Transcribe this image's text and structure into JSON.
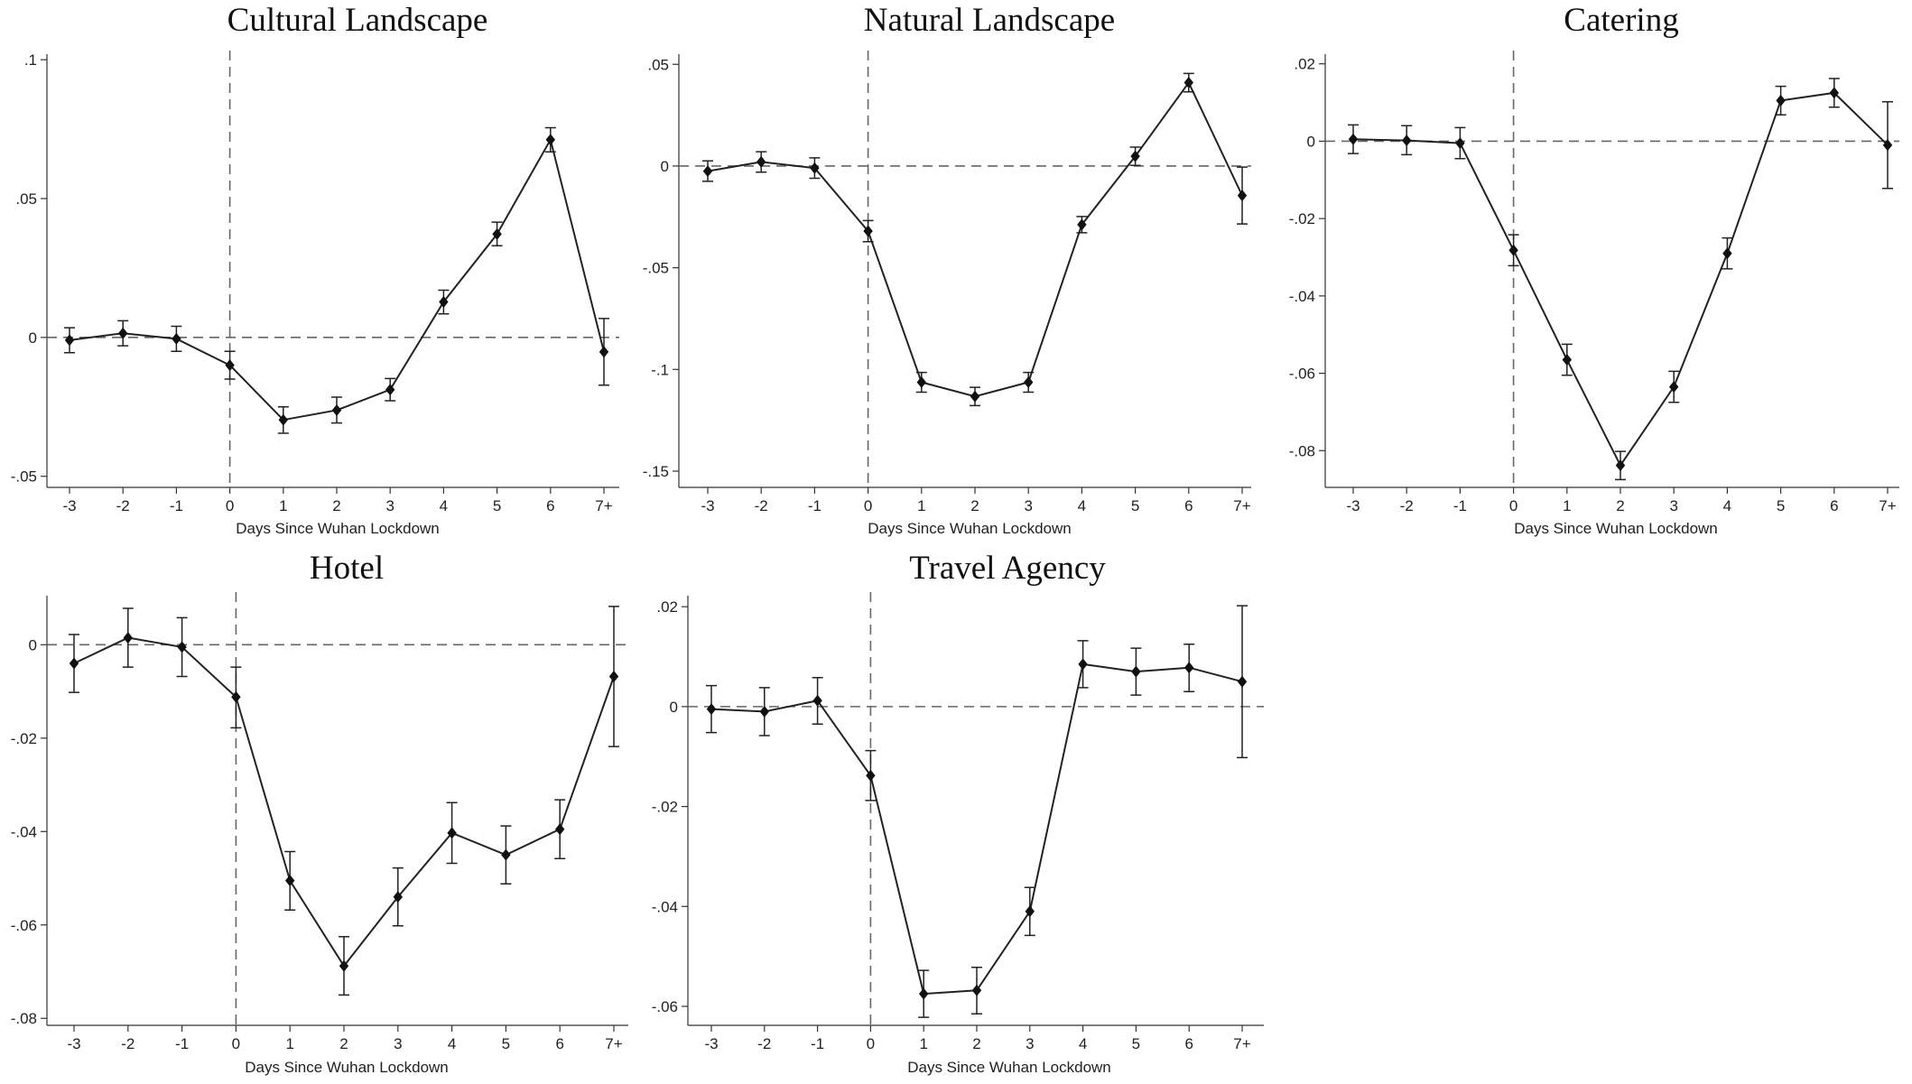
{
  "chart_data": [
    {
      "type": "line",
      "title": "Cultural Landscape",
      "xlabel": "Days Since Wuhan Lockdown",
      "ylabel": "",
      "categories": [
        "-3",
        "-2",
        "-1",
        "0",
        "1",
        "2",
        "3",
        "4",
        "5",
        "6",
        "7+"
      ],
      "yticks": [
        ".1",
        ".05",
        "0",
        "-.05"
      ],
      "ytick_values": [
        0.1,
        0.05,
        0,
        -0.05
      ],
      "ylim": [
        -0.054,
        0.102
      ],
      "reference_lines": {
        "x_category": "0",
        "y_value": 0
      },
      "series": [
        {
          "values": [
            -0.001,
            0.0015,
            -0.0005,
            -0.01,
            -0.0297,
            -0.0262,
            -0.0188,
            0.0128,
            0.0372,
            0.0712,
            -0.0052
          ],
          "ci_low": [
            -0.0055,
            -0.003,
            -0.005,
            -0.015,
            -0.0345,
            -0.0308,
            -0.0228,
            0.0085,
            0.033,
            0.0668,
            -0.0172
          ],
          "ci_high": [
            0.0035,
            0.006,
            0.004,
            -0.005,
            -0.025,
            -0.0215,
            -0.0148,
            0.017,
            0.0415,
            0.0755,
            0.0068
          ]
        }
      ],
      "legend": "none"
    },
    {
      "type": "line",
      "title": "Natural Landscape",
      "xlabel": "Days Since Wuhan Lockdown",
      "ylabel": "",
      "categories": [
        "-3",
        "-2",
        "-1",
        "0",
        "1",
        "2",
        "3",
        "4",
        "5",
        "6",
        "7+"
      ],
      "yticks": [
        ".05",
        "0",
        "-.05",
        "-.1",
        "-.15"
      ],
      "ytick_values": [
        0.05,
        0,
        -0.05,
        -0.1,
        -0.15
      ],
      "ylim": [
        -0.158,
        0.055
      ],
      "reference_lines": {
        "x_category": "0",
        "y_value": 0
      },
      "series": [
        {
          "values": [
            -0.0025,
            0.002,
            -0.001,
            -0.032,
            -0.1063,
            -0.1133,
            -0.1063,
            -0.0288,
            0.0048,
            0.041,
            -0.0145
          ],
          "ci_low": [
            -0.0075,
            -0.003,
            -0.006,
            -0.0372,
            -0.1112,
            -0.1178,
            -0.1112,
            -0.0328,
            0.0003,
            0.0365,
            -0.0285
          ],
          "ci_high": [
            0.0025,
            0.007,
            0.004,
            -0.0268,
            -0.1015,
            -0.1088,
            -0.1015,
            -0.0248,
            0.0093,
            0.0455,
            -0.0005
          ]
        }
      ],
      "legend": "none"
    },
    {
      "type": "line",
      "title": "Catering",
      "xlabel": "Days Since Wuhan Lockdown",
      "ylabel": "",
      "categories": [
        "-3",
        "-2",
        "-1",
        "0",
        "1",
        "2",
        "3",
        "4",
        "5",
        "6",
        "7+"
      ],
      "yticks": [
        ".02",
        "0",
        "-.02",
        "-.04",
        "-.06",
        "-.08"
      ],
      "ytick_values": [
        0.02,
        0,
        -0.02,
        -0.04,
        -0.06,
        -0.08
      ],
      "ylim": [
        -0.0895,
        0.0225
      ],
      "reference_lines": {
        "x_category": "0",
        "y_value": 0
      },
      "series": [
        {
          "values": [
            0.0005,
            0.0002,
            -0.0005,
            -0.0282,
            -0.0565,
            -0.0838,
            -0.0635,
            -0.029,
            0.0105,
            0.0125,
            -0.001
          ],
          "ci_low": [
            -0.0032,
            -0.0035,
            -0.0045,
            -0.0322,
            -0.0605,
            -0.0875,
            -0.0675,
            -0.033,
            0.0068,
            0.0088,
            -0.0122
          ],
          "ci_high": [
            0.0042,
            0.004,
            0.0035,
            -0.0242,
            -0.0525,
            -0.0802,
            -0.0595,
            -0.025,
            0.0142,
            0.0162,
            0.0102
          ]
        }
      ],
      "legend": "none"
    },
    {
      "type": "line",
      "title": "Hotel",
      "xlabel": "Days Since Wuhan Lockdown",
      "ylabel": "",
      "categories": [
        "-3",
        "-2",
        "-1",
        "0",
        "1",
        "2",
        "3",
        "4",
        "5",
        "6",
        "7+"
      ],
      "yticks": [
        "0",
        "-.02",
        "-.04",
        "-.06",
        "-.08"
      ],
      "ytick_values": [
        0,
        -0.02,
        -0.04,
        -0.06,
        -0.08
      ],
      "ylim": [
        -0.0815,
        0.0105
      ],
      "reference_lines": {
        "x_category": "0",
        "y_value": 0
      },
      "series": [
        {
          "values": [
            -0.004,
            0.0015,
            -0.0005,
            -0.0112,
            -0.0505,
            -0.0688,
            -0.054,
            -0.0403,
            -0.045,
            -0.0395,
            -0.0068
          ],
          "ci_low": [
            -0.0102,
            -0.0048,
            -0.0068,
            -0.0178,
            -0.0568,
            -0.075,
            -0.0602,
            -0.0468,
            -0.0512,
            -0.0458,
            -0.0218
          ],
          "ci_high": [
            0.0022,
            0.0078,
            0.0058,
            -0.0048,
            -0.0443,
            -0.0625,
            -0.0478,
            -0.0338,
            -0.0388,
            -0.0332,
            0.0082
          ]
        }
      ],
      "legend": "none"
    },
    {
      "type": "line",
      "title": "Travel Agency",
      "xlabel": "Days Since Wuhan Lockdown",
      "ylabel": "",
      "categories": [
        "-3",
        "-2",
        "-1",
        "0",
        "1",
        "2",
        "3",
        "4",
        "5",
        "6",
        "7+"
      ],
      "yticks": [
        ".02",
        "0",
        "-.02",
        "-.04",
        "-.06"
      ],
      "ytick_values": [
        0.02,
        0,
        -0.02,
        -0.04,
        -0.06
      ],
      "ylim": [
        -0.0638,
        0.0222
      ],
      "reference_lines": {
        "x_category": "0",
        "y_value": 0
      },
      "series": [
        {
          "values": [
            -0.0005,
            -0.001,
            0.0012,
            -0.0138,
            -0.0575,
            -0.0568,
            -0.041,
            0.0085,
            0.007,
            0.0078,
            0.005
          ],
          "ci_low": [
            -0.0052,
            -0.0058,
            -0.0035,
            -0.0188,
            -0.0622,
            -0.0615,
            -0.0458,
            0.0038,
            0.0023,
            0.003,
            -0.0102
          ],
          "ci_high": [
            0.0042,
            0.0038,
            0.0058,
            -0.0088,
            -0.0528,
            -0.0522,
            -0.0362,
            0.0132,
            0.0117,
            0.0125,
            0.0202
          ]
        }
      ],
      "legend": "none"
    }
  ]
}
